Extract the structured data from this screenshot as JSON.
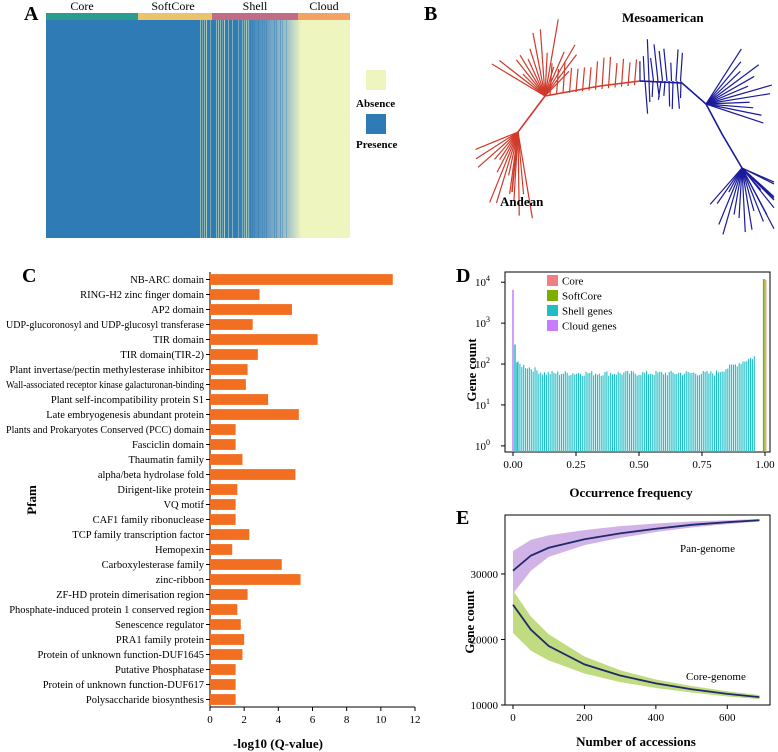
{
  "panel_labels": {
    "a": "A",
    "b": "B",
    "c": "C",
    "d": "D",
    "e": "E"
  },
  "chart_data": [
    {
      "panel": "A",
      "type": "heatmap",
      "column_groups": [
        {
          "label": "Core",
          "color": "#2a9d8f"
        },
        {
          "label": "SoftCore",
          "color": "#e9c46a"
        },
        {
          "label": "Shell",
          "color": "#c06c84"
        },
        {
          "label": "Cloud",
          "color": "#f4a261"
        }
      ],
      "legend": [
        {
          "label": "Absence",
          "color": "#eef5bf"
        },
        {
          "label": "Presence",
          "color": "#2f7bb5"
        }
      ]
    },
    {
      "panel": "B",
      "type": "tree",
      "clades": [
        {
          "label": "Mesoamerican",
          "color": "#1a1a9c"
        },
        {
          "label": "Andean",
          "color": "#d03a2a"
        }
      ]
    },
    {
      "panel": "C",
      "type": "bar",
      "orientation": "horizontal",
      "ylabel": "Pfam",
      "xlabel": "-log10 (Q-value)",
      "xlim": [
        0,
        12
      ],
      "xticks": [
        "0",
        "2",
        "4",
        "6",
        "8",
        "10",
        "12"
      ],
      "color": "#f26f21",
      "categories": [
        "NB-ARC domain",
        "RING-H2 zinc finger domain",
        "AP2 domain",
        "UDP-glucoronosyl and UDP-glucosyl transferase",
        "TIR domain",
        "TIR domain(TIR-2)",
        "Plant invertase/pectin methylesterase inhibitor",
        "Wall-associated receptor kinase galacturonan-binding",
        "Plant self-incompatibility protein S1",
        "Late embryogenesis abundant protein",
        "Plants and Prokaryotes Conserved (PCC) domain",
        "Fasciclin domain",
        "Thaumatin family",
        "alpha/beta hydrolase fold",
        "Dirigent-like protein",
        "VQ motif",
        "CAF1 family ribonuclease",
        "TCP family transcription factor",
        "Hemopexin",
        "Carboxylesterase family",
        "zinc-ribbon",
        "ZF-HD protein dimerisation region",
        "Phosphate-induced protein 1 conserved region",
        "Senescence regulator",
        "PRA1 family protein",
        "Protein of unknown function-DUF1645",
        "Putative Phosphatase",
        "Protein of unknown function-DUF617",
        "Polysaccharide biosynthesis"
      ],
      "values": [
        10.7,
        2.9,
        4.8,
        2.5,
        6.3,
        2.8,
        2.2,
        2.1,
        3.4,
        5.2,
        1.5,
        1.5,
        1.9,
        5.0,
        1.6,
        1.5,
        1.5,
        2.3,
        1.3,
        4.2,
        5.3,
        2.2,
        1.6,
        1.8,
        2.0,
        1.9,
        1.5,
        1.5,
        1.5
      ]
    },
    {
      "panel": "D",
      "type": "bar",
      "yscale": "log",
      "xlabel": "Occurrence frequency",
      "ylabel": "Gene count",
      "xlim": [
        0,
        1
      ],
      "xticks": [
        "0.00",
        "0.25",
        "0.50",
        "0.75",
        "1.00"
      ],
      "ytick_base": "10",
      "yticks_exp": [
        "0",
        "1",
        "2",
        "3",
        "4"
      ],
      "legend": [
        {
          "label": "Core",
          "color": "#f08080"
        },
        {
          "label": "SoftCore",
          "color": "#7cae00"
        },
        {
          "label": "Shell genes",
          "color": "#1fbec6"
        },
        {
          "label": "Cloud genes",
          "color": "#c77cff"
        }
      ],
      "cloud_counts": [
        6500,
        300,
        110
      ],
      "shell_range": [
        0.02,
        0.96
      ],
      "shell_typical_count": 60,
      "softcore_count": 12000,
      "core_count": 11500
    },
    {
      "panel": "E",
      "type": "line",
      "xlabel": "Number of accessions",
      "ylabel": "Gene count",
      "xlim": [
        0,
        700
      ],
      "ylim": [
        10000,
        39000
      ],
      "xticks": [
        "0",
        "200",
        "400",
        "600"
      ],
      "yticks": [
        "10000",
        "20000",
        "30000"
      ],
      "series": [
        {
          "name": "Pan-genome",
          "color": "#1f2a6b",
          "band_color": "#c9a6e3",
          "x": [
            0,
            50,
            100,
            200,
            300,
            400,
            500,
            600,
            690
          ],
          "values": [
            30500,
            32800,
            34000,
            35300,
            36200,
            36900,
            37500,
            37900,
            38200
          ],
          "band_low": [
            27000,
            30500,
            32600,
            34400,
            35500,
            36400,
            37100,
            37600,
            38000
          ],
          "band_high": [
            33500,
            35200,
            35900,
            36700,
            37300,
            37700,
            38000,
            38200,
            38400
          ]
        },
        {
          "name": "Core-genome",
          "color": "#1f2a6b",
          "band_color": "#b5d56a",
          "x": [
            0,
            50,
            100,
            200,
            300,
            400,
            500,
            600,
            690
          ],
          "values": [
            25300,
            21500,
            19000,
            16200,
            14500,
            13300,
            12400,
            11700,
            11200
          ],
          "band_low": [
            21000,
            18300,
            16800,
            14800,
            13500,
            12600,
            11900,
            11300,
            10900
          ],
          "band_high": [
            27500,
            23500,
            20800,
            17400,
            15300,
            13900,
            12900,
            12100,
            11500
          ]
        }
      ]
    }
  ]
}
